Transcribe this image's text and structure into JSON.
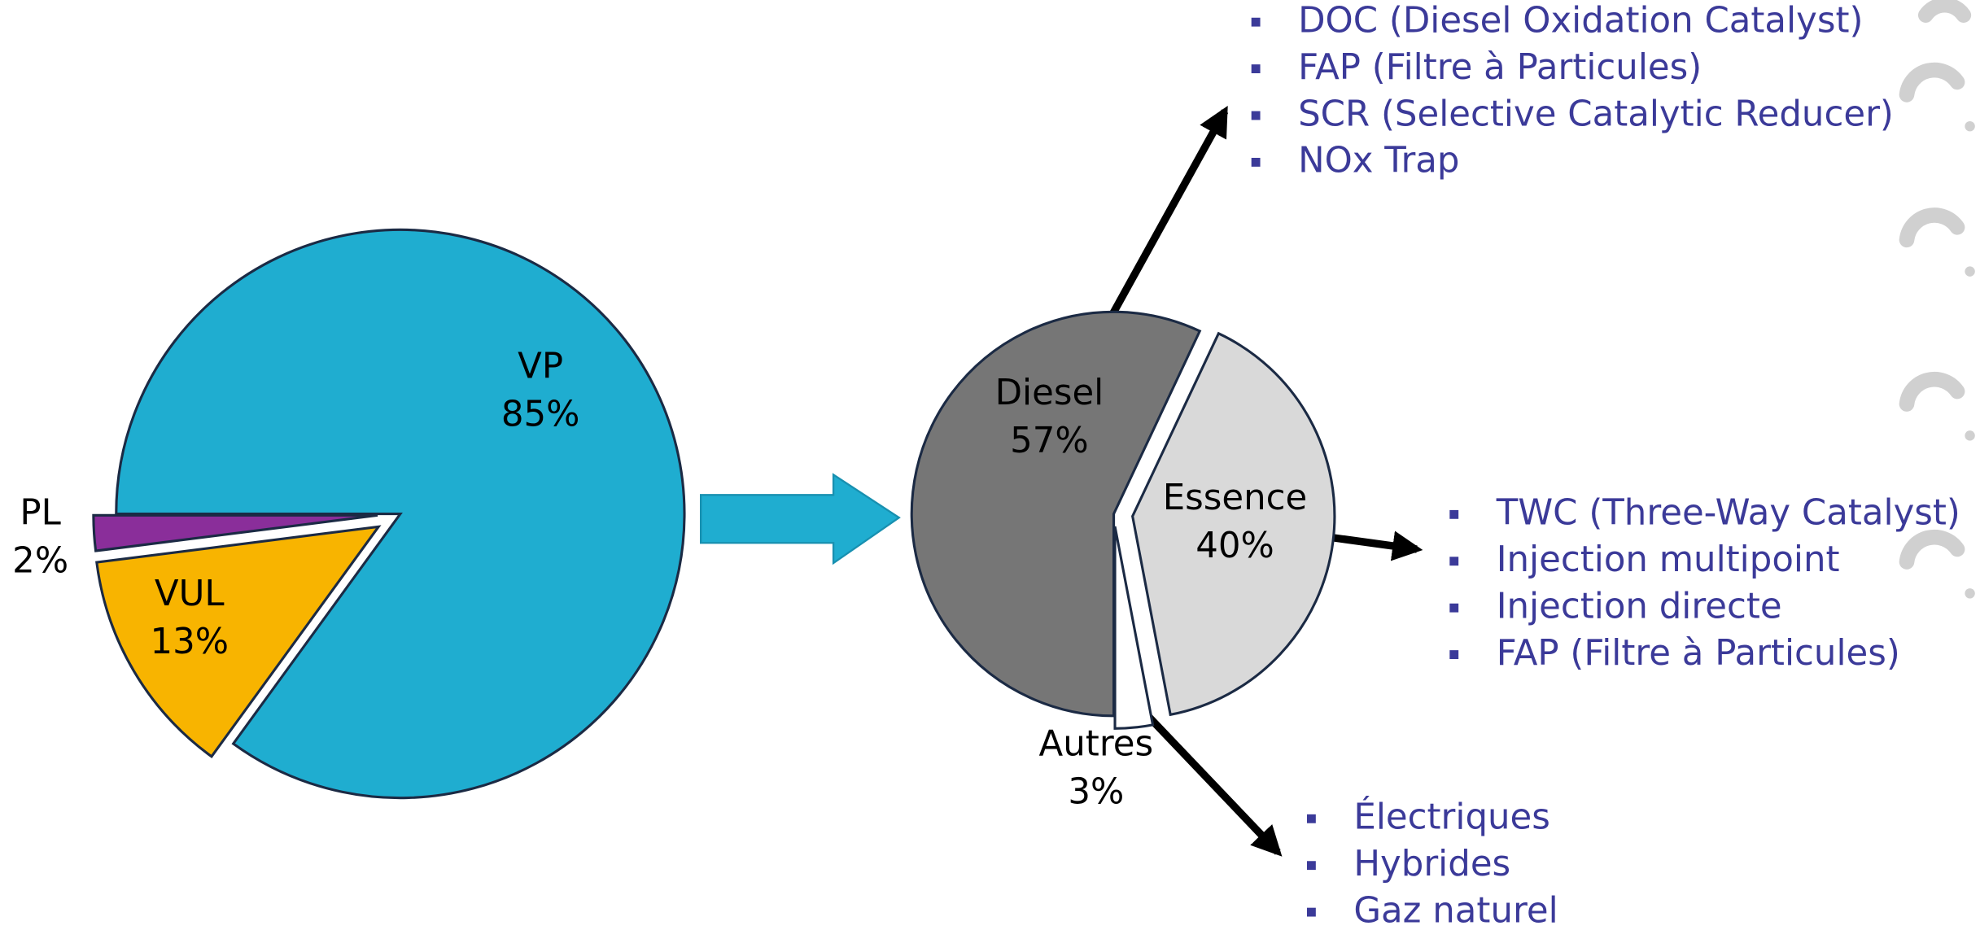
{
  "chart_data": [
    {
      "type": "pie",
      "categories": [
        "VP",
        "VUL",
        "PL"
      ],
      "values": [
        85,
        13,
        2
      ],
      "value_labels": [
        "85%",
        "13%",
        "2%"
      ],
      "colors": [
        "#1fadd0",
        "#f8b400",
        "#8a2e9a"
      ]
    },
    {
      "type": "pie",
      "categories": [
        "Diesel",
        "Essence",
        "Autres"
      ],
      "values": [
        57,
        40,
        3
      ],
      "value_labels": [
        "57%",
        "40%",
        "3%"
      ],
      "colors": [
        "#767676",
        "#d9d9d9",
        "#ffffff"
      ],
      "annotations": [
        [
          "DOC (Diesel Oxidation Catalyst)",
          "FAP (Filtre à Particules)",
          "SCR (Selective Catalytic Reducer)",
          "NOx Trap"
        ],
        [
          "TWC (Three-Way Catalyst)",
          "Injection multipoint",
          "Injection directe",
          "FAP (Filtre à Particules)"
        ],
        [
          "Électriques",
          "Hybrides",
          "Gaz naturel"
        ]
      ]
    }
  ]
}
